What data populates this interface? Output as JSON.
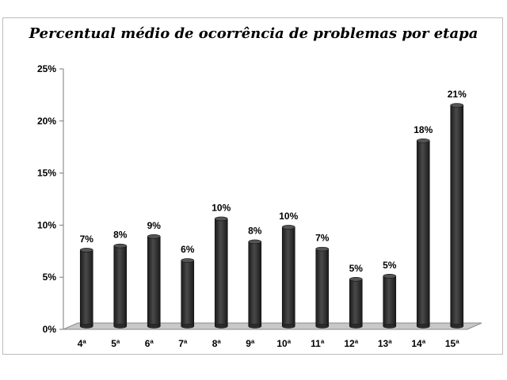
{
  "chart_data": {
    "type": "bar",
    "title": "Percentual médio de ocorrência de problemas por etapa",
    "xlabel": "",
    "ylabel": "",
    "ylim": [
      0,
      25
    ],
    "yticks": [
      "0%",
      "5%",
      "10%",
      "15%",
      "20%",
      "25%"
    ],
    "categories": [
      "4ª",
      "5ª",
      "6ª",
      "7ª",
      "8ª",
      "9ª",
      "10ª",
      "11ª",
      "12ª",
      "13ª",
      "14ª",
      "15ª"
    ],
    "values": [
      7.3,
      7.7,
      8.6,
      6.3,
      10.3,
      8.1,
      9.5,
      7.4,
      4.5,
      4.8,
      17.8,
      21.2
    ],
    "data_labels": [
      "7%",
      "8%",
      "9%",
      "6%",
      "10%",
      "8%",
      "10%",
      "7%",
      "5%",
      "5%",
      "18%",
      "21%"
    ],
    "grid": false,
    "legend": "none",
    "colors": {
      "bar": "#2b2b2b",
      "bar_highlight": "#555555",
      "floor": "#c8c8c8"
    }
  }
}
